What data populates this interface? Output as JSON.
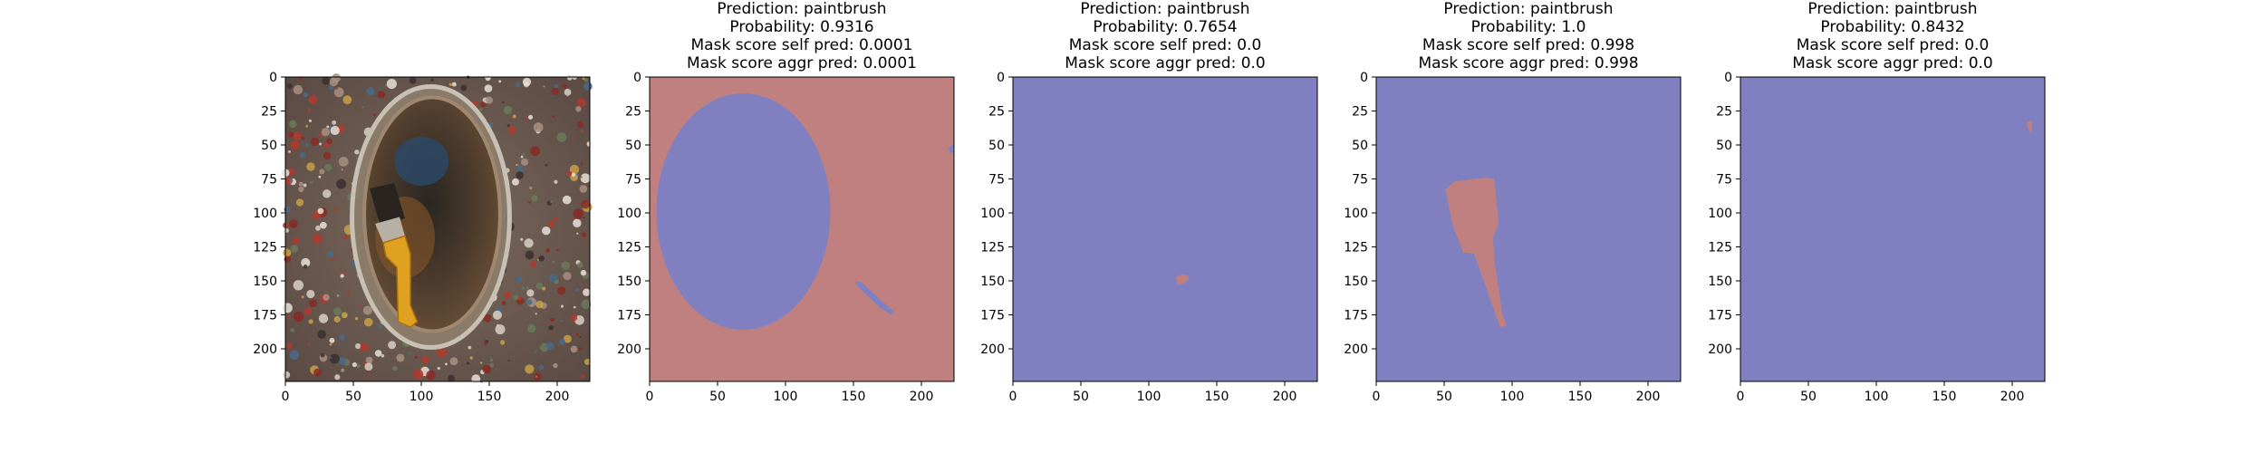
{
  "figure": {
    "background": "#ffffff",
    "mask_colors": {
      "blue": "#8080c0",
      "red": "#c0807f"
    }
  },
  "chart_data": [
    {
      "type": "image",
      "content": "photo of a paint can on a paint-splattered floor with a yellow-handled paintbrush",
      "title_lines": [],
      "xlim": [
        0,
        224
      ],
      "ylim": [
        224,
        0
      ],
      "xticks": [
        0,
        50,
        100,
        150,
        200
      ],
      "yticks": [
        0,
        25,
        50,
        75,
        100,
        125,
        150,
        175,
        200
      ]
    },
    {
      "type": "heatmap",
      "title_lines": [
        "Prediction: paintbrush",
        "Probability: 0.9316",
        "Mask score self pred: 0.0001",
        "Mask score aggr pred: 0.0001"
      ],
      "xlim": [
        0,
        224
      ],
      "ylim": [
        224,
        0
      ],
      "xticks": [
        0,
        50,
        100,
        150,
        200
      ],
      "yticks": [
        0,
        25,
        50,
        75,
        100,
        125,
        150,
        175,
        200
      ],
      "background_class": "red",
      "regions": [
        {
          "class": "blue",
          "kind": "ellipse",
          "center": [
            69,
            99
          ],
          "radii": [
            64,
            87
          ]
        },
        {
          "class": "blue",
          "kind": "polygon",
          "points": [
            [
              152,
              150
            ],
            [
              156,
              151
            ],
            [
              180,
              173
            ],
            [
              178,
              175
            ],
            [
              170,
              170
            ],
            [
              152,
              153
            ]
          ]
        },
        {
          "class": "blue",
          "kind": "polygon",
          "points": [
            [
              220,
              52
            ],
            [
              224,
              49
            ],
            [
              224,
              55
            ],
            [
              221,
              56
            ]
          ]
        }
      ]
    },
    {
      "type": "heatmap",
      "title_lines": [
        "Prediction: paintbrush",
        "Probability: 0.7654",
        "Mask score self pred: 0.0",
        "Mask score aggr pred: 0.0"
      ],
      "xlim": [
        0,
        224
      ],
      "ylim": [
        224,
        0
      ],
      "xticks": [
        0,
        50,
        100,
        150,
        200
      ],
      "yticks": [
        0,
        25,
        50,
        75,
        100,
        125,
        150,
        175,
        200
      ],
      "background_class": "blue",
      "regions": [
        {
          "class": "red",
          "kind": "polygon",
          "points": [
            [
              120,
              147
            ],
            [
              125,
              145
            ],
            [
              130,
              147
            ],
            [
              127,
              151
            ],
            [
              121,
              153
            ]
          ]
        }
      ]
    },
    {
      "type": "heatmap",
      "title_lines": [
        "Prediction: paintbrush",
        "Probability: 1.0",
        "Mask score self pred: 0.998",
        "Mask score aggr pred: 0.998"
      ],
      "xlim": [
        0,
        224
      ],
      "ylim": [
        224,
        0
      ],
      "xticks": [
        0,
        50,
        100,
        150,
        200
      ],
      "yticks": [
        0,
        25,
        50,
        75,
        100,
        125,
        150,
        175,
        200
      ],
      "background_class": "blue",
      "regions": [
        {
          "class": "red",
          "kind": "polygon",
          "points": [
            [
              51,
              83
            ],
            [
              57,
              77
            ],
            [
              80,
              74
            ],
            [
              87,
              75
            ],
            [
              90,
              108
            ],
            [
              86,
              118
            ],
            [
              87,
              135
            ],
            [
              93,
              175
            ],
            [
              96,
              183
            ],
            [
              91,
              184
            ],
            [
              82,
              158
            ],
            [
              72,
              130
            ],
            [
              64,
              129
            ],
            [
              56,
              108
            ]
          ]
        }
      ]
    },
    {
      "type": "heatmap",
      "title_lines": [
        "Prediction: paintbrush",
        "Probability: 0.8432",
        "Mask score self pred: 0.0",
        "Mask score aggr pred: 0.0"
      ],
      "xlim": [
        0,
        224
      ],
      "ylim": [
        224,
        0
      ],
      "xticks": [
        0,
        50,
        100,
        150,
        200
      ],
      "yticks": [
        0,
        25,
        50,
        75,
        100,
        125,
        150,
        175,
        200
      ],
      "background_class": "blue",
      "regions": [
        {
          "class": "red",
          "kind": "polygon",
          "points": [
            [
              211,
              33
            ],
            [
              214,
              32
            ],
            [
              215,
              37
            ],
            [
              213,
              41
            ],
            [
              211,
              36
            ]
          ]
        }
      ]
    }
  ]
}
